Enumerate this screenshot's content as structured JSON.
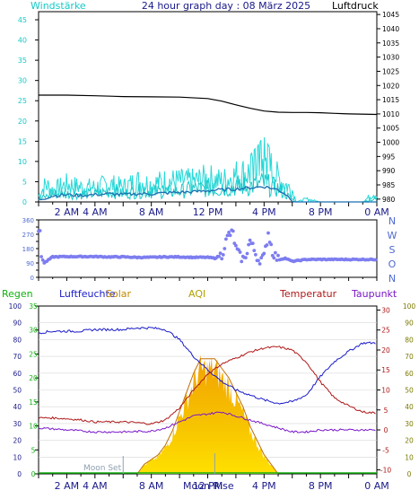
{
  "header": {
    "title": "24 hour graph day : 08 März 2025",
    "left_label": "Windstärke",
    "right_label": "Luftdruck"
  },
  "colors": {
    "wind": "#17c9c9",
    "gust": "#27d8d8",
    "avg_wind": "#1a6fb0",
    "pressure": "#000000",
    "direction": "#7d7df0",
    "humidity": "#1a1ac8",
    "temperature": "#b01818",
    "dewpoint": "#7a18c8",
    "solar": "#e8a800",
    "rain": "#10b010",
    "aqi": "#b0a000",
    "dir_labels": "#4f6ad0"
  },
  "x_axis": {
    "tick_labels": [
      "2 AM",
      "4 AM",
      "8 AM",
      "12 PM",
      "4 PM",
      "8 PM",
      "0 AM"
    ],
    "tick_hours": [
      2,
      4,
      8,
      12,
      16,
      20,
      24
    ]
  },
  "chart_data": [
    {
      "type": "line",
      "panel": "wind-pressure",
      "title": "24 hour graph day : 08 März 2025",
      "left_axis": {
        "label": "Windstärke",
        "ticks": [
          0,
          5,
          10,
          15,
          20,
          25,
          30,
          35,
          40,
          45
        ],
        "range": [
          0,
          47
        ]
      },
      "right_axis": {
        "label": "Luftdruck",
        "ticks": [
          980,
          985,
          990,
          995,
          1000,
          1005,
          1010,
          1015,
          1020,
          1025,
          1030,
          1035,
          1040,
          1045
        ],
        "range": [
          979,
          1046
        ]
      },
      "pressure": [
        [
          0,
          1016.6
        ],
        [
          2,
          1016.6
        ],
        [
          4,
          1016.4
        ],
        [
          6,
          1016.1
        ],
        [
          8,
          1016.0
        ],
        [
          10,
          1015.9
        ],
        [
          12,
          1015.4
        ],
        [
          13,
          1014.5
        ],
        [
          14,
          1013.2
        ],
        [
          15,
          1012.0
        ],
        [
          16,
          1011.0
        ],
        [
          17,
          1010.6
        ],
        [
          18,
          1010.5
        ],
        [
          19,
          1010.5
        ],
        [
          20,
          1010.4
        ],
        [
          21,
          1010.2
        ],
        [
          22,
          1010.0
        ],
        [
          24,
          1009.8
        ]
      ],
      "gust": [
        [
          0,
          2
        ],
        [
          0.5,
          6
        ],
        [
          1,
          4
        ],
        [
          2,
          6
        ],
        [
          3,
          5
        ],
        [
          4,
          5
        ],
        [
          5,
          6
        ],
        [
          6,
          5
        ],
        [
          7,
          7
        ],
        [
          8,
          6
        ],
        [
          9,
          7
        ],
        [
          10,
          7
        ],
        [
          11,
          7
        ],
        [
          12,
          8
        ],
        [
          13,
          7
        ],
        [
          14,
          9
        ],
        [
          15,
          10
        ],
        [
          15.5,
          12
        ],
        [
          16,
          14
        ],
        [
          16.5,
          11
        ],
        [
          17,
          8
        ],
        [
          17.5,
          6
        ],
        [
          18,
          4
        ],
        [
          18.3,
          0
        ],
        [
          19,
          1
        ],
        [
          20,
          0
        ],
        [
          21,
          0
        ],
        [
          22,
          0
        ],
        [
          23,
          0
        ],
        [
          23.8,
          3
        ],
        [
          24,
          2
        ]
      ],
      "wind": [
        [
          0,
          1
        ],
        [
          1,
          3
        ],
        [
          2,
          3
        ],
        [
          3,
          3
        ],
        [
          4,
          3
        ],
        [
          5,
          4
        ],
        [
          6,
          3
        ],
        [
          7,
          4
        ],
        [
          8,
          4
        ],
        [
          9,
          4
        ],
        [
          10,
          4
        ],
        [
          11,
          5
        ],
        [
          12,
          5
        ],
        [
          13,
          5
        ],
        [
          14,
          6
        ],
        [
          15,
          6
        ],
        [
          16,
          7
        ],
        [
          17,
          5
        ],
        [
          17.5,
          3
        ],
        [
          18,
          1
        ],
        [
          18.3,
          0
        ],
        [
          20,
          0
        ],
        [
          23,
          0
        ],
        [
          23.8,
          1
        ],
        [
          24,
          1
        ]
      ],
      "avg_wind": [
        [
          0,
          0.5
        ],
        [
          1,
          1.5
        ],
        [
          2,
          1.8
        ],
        [
          3,
          1.6
        ],
        [
          4,
          1.8
        ],
        [
          5,
          2.0
        ],
        [
          6,
          1.8
        ],
        [
          7,
          2.0
        ],
        [
          8,
          2.0
        ],
        [
          9,
          2.2
        ],
        [
          10,
          2.4
        ],
        [
          11,
          2.5
        ],
        [
          12,
          2.8
        ],
        [
          13,
          3.0
        ],
        [
          14,
          3.2
        ],
        [
          15,
          3.5
        ],
        [
          16,
          3.8
        ],
        [
          17,
          3.0
        ],
        [
          17.5,
          2.0
        ],
        [
          18,
          0.5
        ],
        [
          18.3,
          0
        ],
        [
          24,
          0
        ]
      ]
    },
    {
      "type": "scatter",
      "panel": "wind-direction",
      "left_axis": {
        "ticks": [
          0,
          45,
          90,
          135,
          180,
          225,
          270,
          315,
          360
        ],
        "labeled_ticks": [
          0,
          90,
          180,
          270,
          360
        ],
        "range": [
          0,
          360
        ]
      },
      "right_labels": [
        "N",
        "W",
        "S",
        "O",
        "N"
      ],
      "direction": [
        [
          0.1,
          290
        ],
        [
          0.2,
          130
        ],
        [
          0.4,
          90
        ],
        [
          1,
          128
        ],
        [
          2,
          130
        ],
        [
          3,
          130
        ],
        [
          4,
          130
        ],
        [
          5,
          128
        ],
        [
          6,
          128
        ],
        [
          7,
          125
        ],
        [
          8,
          125
        ],
        [
          9,
          128
        ],
        [
          10,
          128
        ],
        [
          11,
          125
        ],
        [
          12,
          125
        ],
        [
          12.5,
          120
        ],
        [
          13,
          140
        ],
        [
          13.2,
          200
        ],
        [
          13.5,
          270
        ],
        [
          13.8,
          275
        ],
        [
          14,
          180
        ],
        [
          14.3,
          130
        ],
        [
          14.6,
          110
        ],
        [
          15,
          230
        ],
        [
          15.3,
          170
        ],
        [
          15.6,
          110
        ],
        [
          16,
          125
        ],
        [
          16.3,
          280
        ],
        [
          16.6,
          160
        ],
        [
          17,
          110
        ],
        [
          17.5,
          120
        ],
        [
          18,
          100
        ],
        [
          19,
          112
        ],
        [
          20,
          112
        ],
        [
          21,
          112
        ],
        [
          22,
          112
        ],
        [
          23,
          112
        ],
        [
          24,
          112
        ]
      ]
    },
    {
      "type": "line",
      "panel": "climate",
      "legend": [
        "Regen",
        "Luftfeuchte",
        "Solar",
        "AQI",
        "Temperatur",
        "Taupunkt"
      ],
      "humidity_axis": {
        "ticks": [
          0,
          10,
          20,
          30,
          40,
          50,
          60,
          70,
          80,
          90,
          100
        ],
        "range": [
          0,
          100
        ]
      },
      "rain_axis": {
        "ticks": [
          0,
          5,
          10,
          15,
          20,
          25,
          30,
          35
        ],
        "range": [
          0,
          35
        ]
      },
      "temp_axis": {
        "ticks": [
          -10,
          -5,
          0,
          5,
          10,
          15,
          20,
          25,
          30
        ],
        "range": [
          -11,
          31
        ]
      },
      "aqi_axis": {
        "ticks": [
          0,
          10,
          20,
          30,
          40,
          50,
          60,
          70,
          80,
          90,
          100
        ],
        "range": [
          0,
          100
        ]
      },
      "humidity": [
        [
          0,
          84
        ],
        [
          1,
          85
        ],
        [
          2,
          85
        ],
        [
          3,
          85
        ],
        [
          4,
          86
        ],
        [
          5,
          86
        ],
        [
          6,
          86
        ],
        [
          7,
          87
        ],
        [
          8,
          87
        ],
        [
          9,
          86
        ],
        [
          10,
          80
        ],
        [
          11,
          70
        ],
        [
          12,
          62
        ],
        [
          13,
          55
        ],
        [
          14,
          50
        ],
        [
          15,
          47
        ],
        [
          16,
          44
        ],
        [
          17,
          42
        ],
        [
          18,
          43
        ],
        [
          19,
          47
        ],
        [
          20,
          58
        ],
        [
          21,
          67
        ],
        [
          22,
          73
        ],
        [
          23,
          78
        ],
        [
          24,
          78
        ]
      ],
      "temperature": [
        [
          0,
          3.0
        ],
        [
          1,
          3.0
        ],
        [
          2,
          2.8
        ],
        [
          3,
          2.5
        ],
        [
          4,
          2.0
        ],
        [
          5,
          2.0
        ],
        [
          6,
          2.0
        ],
        [
          7,
          1.8
        ],
        [
          8,
          1.5
        ],
        [
          9,
          2.5
        ],
        [
          10,
          5.5
        ],
        [
          11,
          10
        ],
        [
          12,
          14
        ],
        [
          13,
          16.5
        ],
        [
          14,
          18
        ],
        [
          15,
          19.5
        ],
        [
          16,
          20.5
        ],
        [
          17,
          20.8
        ],
        [
          18,
          20
        ],
        [
          19,
          17
        ],
        [
          20,
          12
        ],
        [
          21,
          8
        ],
        [
          22,
          6
        ],
        [
          23,
          4.5
        ],
        [
          24,
          4.2
        ]
      ],
      "dewpoint": [
        [
          0,
          0.5
        ],
        [
          2,
          0
        ],
        [
          4,
          -0.5
        ],
        [
          6,
          -0.5
        ],
        [
          8,
          -0.3
        ],
        [
          9,
          0.5
        ],
        [
          10,
          2
        ],
        [
          11,
          3.5
        ],
        [
          12,
          4
        ],
        [
          13,
          4.5
        ],
        [
          14,
          3.5
        ],
        [
          15,
          2.5
        ],
        [
          16,
          1.5
        ],
        [
          17,
          0.5
        ],
        [
          18,
          -0.5
        ],
        [
          19,
          -0.5
        ],
        [
          20,
          0
        ],
        [
          21,
          0
        ],
        [
          22,
          0
        ],
        [
          23,
          0
        ],
        [
          24,
          0
        ]
      ],
      "solar": [
        [
          7,
          0
        ],
        [
          7.5,
          2
        ],
        [
          8,
          3
        ],
        [
          8.5,
          4
        ],
        [
          9,
          6
        ],
        [
          9.5,
          9
        ],
        [
          10,
          13
        ],
        [
          10.5,
          17
        ],
        [
          11,
          21
        ],
        [
          11.5,
          24
        ],
        [
          12,
          24
        ],
        [
          12.5,
          24
        ],
        [
          13,
          22
        ],
        [
          13.5,
          20
        ],
        [
          14,
          17
        ],
        [
          14.5,
          14
        ],
        [
          15,
          10
        ],
        [
          15.5,
          7
        ],
        [
          16,
          4
        ],
        [
          16.5,
          2
        ],
        [
          17,
          0
        ]
      ],
      "rain": [
        [
          0,
          0
        ],
        [
          24,
          0
        ]
      ],
      "annotations": [
        {
          "text": "Moon Set",
          "x": 6
        },
        {
          "text": "Moon Rise",
          "x": 12.5
        }
      ]
    }
  ]
}
